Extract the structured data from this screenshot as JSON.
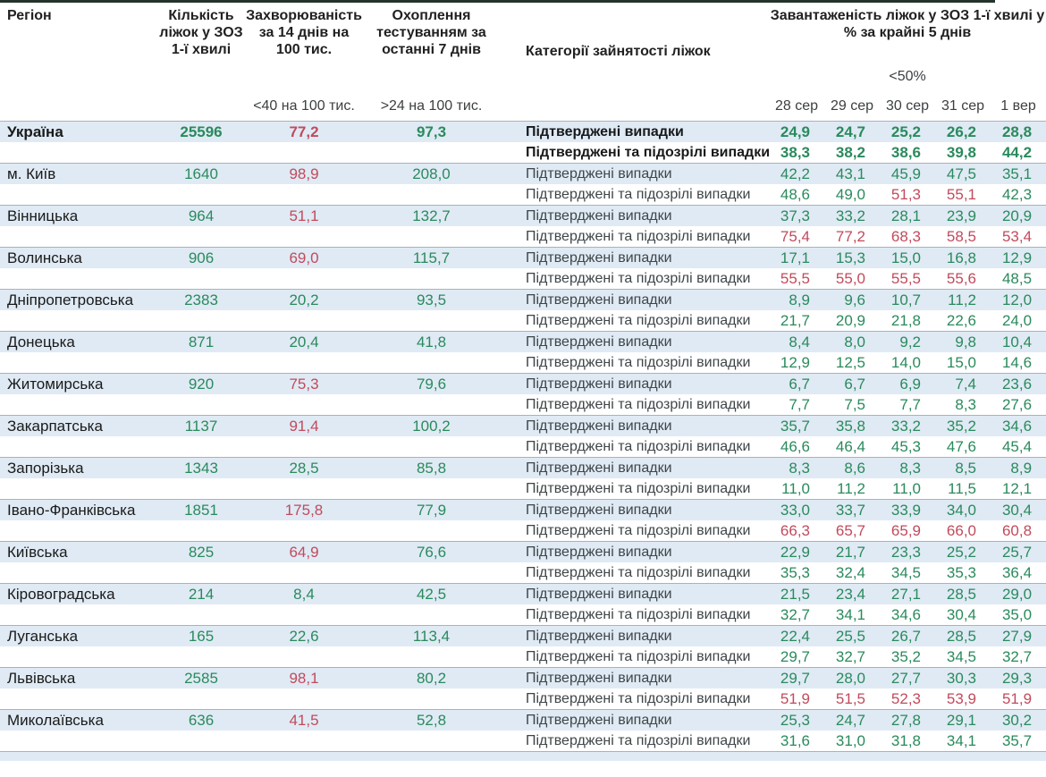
{
  "colors": {
    "good": "#2a8a5c",
    "bad": "#c24a5c",
    "row_bg": "#dfeaf4",
    "separator": "#aab2b9",
    "top_bar": "#24342c"
  },
  "chart_data": {
    "type": "table",
    "title": "Завантаженість ліжок у ЗОЗ 1-ї хвилі у % за крайні 5 днів",
    "columns": {
      "region": "Регіон",
      "beds": "Кількість ліжок у ЗОЗ 1-ї хвилі",
      "incidence": "Захворюваність за 14 днів на 100 тис.",
      "testing": "Охоплення тестуванням за останні 7 днів",
      "categories": "Категорії зайнятості ліжок",
      "occupancy": "Завантаженість ліжок у ЗОЗ 1-ї хвилі у % за крайні 5 днів"
    },
    "thresholds": {
      "incidence": "<40 на 100 тис.",
      "testing": ">24 на 100 тис.",
      "occupancy": "<50%"
    },
    "dates": [
      "28 сер",
      "29 сер",
      "30 сер",
      "31 сер",
      "1 вер"
    ],
    "row_labels": {
      "confirmed": "Підтверджені випадки",
      "suspected": "Підтверджені та підозрілі випадки"
    },
    "rules": {
      "incidence_red_above": 40,
      "occupancy_red_at_or_above": 50
    },
    "rows": [
      {
        "region": "Україна",
        "bold": true,
        "beds": "25596",
        "incidence": "77,2",
        "testing": "97,3",
        "confirmed": [
          "24,9",
          "24,7",
          "25,2",
          "26,2",
          "28,8"
        ],
        "suspected": [
          "38,3",
          "38,2",
          "38,6",
          "39,8",
          "44,2"
        ]
      },
      {
        "region": "м. Київ",
        "bold": false,
        "beds": "1640",
        "incidence": "98,9",
        "testing": "208,0",
        "confirmed": [
          "42,2",
          "43,1",
          "45,9",
          "47,5",
          "35,1"
        ],
        "suspected": [
          "48,6",
          "49,0",
          "51,3",
          "55,1",
          "42,3"
        ]
      },
      {
        "region": "Вінницька",
        "bold": false,
        "beds": "964",
        "incidence": "51,1",
        "testing": "132,7",
        "confirmed": [
          "37,3",
          "33,2",
          "28,1",
          "23,9",
          "20,9"
        ],
        "suspected": [
          "75,4",
          "77,2",
          "68,3",
          "58,5",
          "53,4"
        ]
      },
      {
        "region": "Волинська",
        "bold": false,
        "beds": "906",
        "incidence": "69,0",
        "testing": "115,7",
        "confirmed": [
          "17,1",
          "15,3",
          "15,0",
          "16,8",
          "12,9"
        ],
        "suspected": [
          "55,5",
          "55,0",
          "55,5",
          "55,6",
          "48,5"
        ]
      },
      {
        "region": "Дніпропетровська",
        "bold": false,
        "beds": "2383",
        "incidence": "20,2",
        "testing": "93,5",
        "confirmed": [
          "8,9",
          "9,6",
          "10,7",
          "11,2",
          "12,0"
        ],
        "suspected": [
          "21,7",
          "20,9",
          "21,8",
          "22,6",
          "24,0"
        ]
      },
      {
        "region": "Донецька",
        "bold": false,
        "beds": "871",
        "incidence": "20,4",
        "testing": "41,8",
        "confirmed": [
          "8,4",
          "8,0",
          "9,2",
          "9,8",
          "10,4"
        ],
        "suspected": [
          "12,9",
          "12,5",
          "14,0",
          "15,0",
          "14,6"
        ]
      },
      {
        "region": "Житомирська",
        "bold": false,
        "beds": "920",
        "incidence": "75,3",
        "testing": "79,6",
        "confirmed": [
          "6,7",
          "6,7",
          "6,9",
          "7,4",
          "23,6"
        ],
        "suspected": [
          "7,7",
          "7,5",
          "7,7",
          "8,3",
          "27,6"
        ]
      },
      {
        "region": "Закарпатська",
        "bold": false,
        "beds": "1137",
        "incidence": "91,4",
        "testing": "100,2",
        "confirmed": [
          "35,7",
          "35,8",
          "33,2",
          "35,2",
          "34,6"
        ],
        "suspected": [
          "46,6",
          "46,4",
          "45,3",
          "47,6",
          "45,4"
        ]
      },
      {
        "region": "Запорізька",
        "bold": false,
        "beds": "1343",
        "incidence": "28,5",
        "testing": "85,8",
        "confirmed": [
          "8,3",
          "8,6",
          "8,3",
          "8,5",
          "8,9"
        ],
        "suspected": [
          "11,0",
          "11,2",
          "11,0",
          "11,5",
          "12,1"
        ]
      },
      {
        "region": "Івано-Франківська",
        "bold": false,
        "beds": "1851",
        "incidence": "175,8",
        "testing": "77,9",
        "confirmed": [
          "33,0",
          "33,7",
          "33,9",
          "34,0",
          "30,4"
        ],
        "suspected": [
          "66,3",
          "65,7",
          "65,9",
          "66,0",
          "60,8"
        ]
      },
      {
        "region": "Київська",
        "bold": false,
        "beds": "825",
        "incidence": "64,9",
        "testing": "76,6",
        "confirmed": [
          "22,9",
          "21,7",
          "23,3",
          "25,2",
          "25,7"
        ],
        "suspected": [
          "35,3",
          "32,4",
          "34,5",
          "35,3",
          "36,4"
        ]
      },
      {
        "region": "Кіровоградська",
        "bold": false,
        "beds": "214",
        "incidence": "8,4",
        "testing": "42,5",
        "confirmed": [
          "21,5",
          "23,4",
          "27,1",
          "28,5",
          "29,0"
        ],
        "suspected": [
          "32,7",
          "34,1",
          "34,6",
          "30,4",
          "35,0"
        ]
      },
      {
        "region": "Луганська",
        "bold": false,
        "beds": "165",
        "incidence": "22,6",
        "testing": "113,4",
        "confirmed": [
          "22,4",
          "25,5",
          "26,7",
          "28,5",
          "27,9"
        ],
        "suspected": [
          "29,7",
          "32,7",
          "35,2",
          "34,5",
          "32,7"
        ]
      },
      {
        "region": "Львівська",
        "bold": false,
        "beds": "2585",
        "incidence": "98,1",
        "testing": "80,2",
        "confirmed": [
          "29,7",
          "28,0",
          "27,7",
          "30,3",
          "29,3"
        ],
        "suspected": [
          "51,9",
          "51,5",
          "52,3",
          "53,9",
          "51,9"
        ]
      },
      {
        "region": "Миколаївська",
        "bold": false,
        "beds": "636",
        "incidence": "41,5",
        "testing": "52,8",
        "confirmed": [
          "25,3",
          "24,7",
          "27,8",
          "29,1",
          "30,2"
        ],
        "suspected": [
          "31,6",
          "31,0",
          "31,8",
          "34,1",
          "35,7"
        ]
      }
    ]
  }
}
